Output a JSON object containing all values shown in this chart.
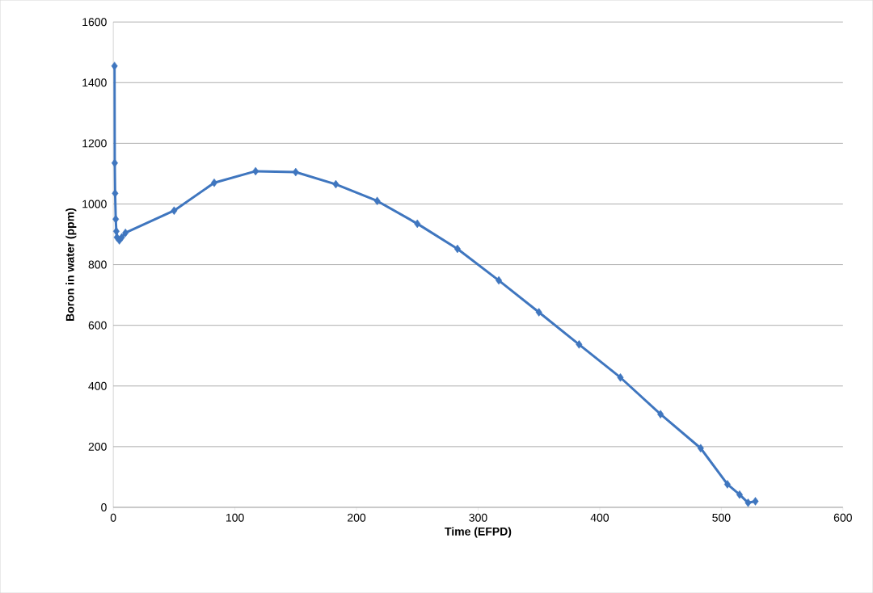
{
  "chart_data": {
    "type": "line",
    "xlabel": "Time (EFPD)",
    "ylabel": "Boron in water (ppm)",
    "xlim": [
      0,
      600
    ],
    "ylim": [
      0,
      1600
    ],
    "xticks": [
      0,
      100,
      200,
      300,
      400,
      500,
      600
    ],
    "yticks": [
      0,
      200,
      400,
      600,
      800,
      1000,
      1200,
      1400,
      1600
    ],
    "grid": "y",
    "marker": "diamond",
    "line_style": "solid",
    "x": [
      1,
      1.2,
      1.5,
      2,
      2.5,
      3,
      5,
      7,
      10,
      50,
      83,
      117,
      150,
      183,
      217,
      250,
      283,
      317,
      350,
      383,
      417,
      450,
      483,
      505,
      515,
      522,
      528
    ],
    "series": [
      {
        "color": "#3f76bf",
        "values": [
          1455,
          1135,
          1035,
          950,
          910,
          890,
          880,
          890,
          905,
          978,
          1070,
          1108,
          1105,
          1065,
          1010,
          935,
          852,
          748,
          643,
          537,
          428,
          307,
          195,
          76,
          42,
          15,
          20
        ]
      }
    ]
  }
}
